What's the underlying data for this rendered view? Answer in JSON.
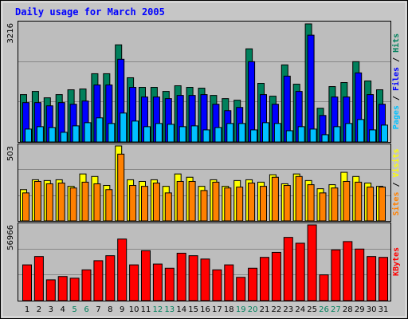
{
  "chart_data": [
    {
      "type": "bar",
      "title": "Daily usage for March 2005",
      "separator": "/",
      "ylim": [
        0,
        3216
      ],
      "yticks": [
        3216
      ],
      "series": [
        {
          "name": "Hits",
          "color": "#00805c",
          "values": [
            1282,
            1369,
            1195,
            1282,
            1412,
            1434,
            1847,
            1847,
            2629,
            1738,
            1478,
            1478,
            1369,
            1521,
            1478,
            1456,
            1260,
            1173,
            1130,
            2521,
            1586,
            1239,
            2086,
            1564,
            3195,
            913,
            1499,
            1608,
            2173,
            1651,
            1412
          ]
        },
        {
          "name": "Files",
          "color": "#0000ff",
          "values": [
            1065,
            1065,
            978,
            1065,
            1021,
            1108,
            1543,
            1543,
            2238,
            1478,
            1217,
            1217,
            1173,
            1260,
            1260,
            1282,
            1021,
            847,
            934,
            2173,
            1282,
            1021,
            1782,
            1369,
            2890,
            717,
            1217,
            1217,
            1869,
            1282,
            1021
          ]
        },
        {
          "name": "Pages",
          "color": "#00c0ff",
          "values": [
            348,
            413,
            391,
            261,
            435,
            521,
            652,
            500,
            782,
            565,
            413,
            500,
            478,
            413,
            435,
            326,
            391,
            500,
            500,
            326,
            521,
            500,
            304,
            413,
            348,
            196,
            413,
            500,
            608,
            326,
            456
          ]
        }
      ]
    },
    {
      "type": "bar",
      "separator": "/",
      "ylim": [
        0,
        503
      ],
      "yticks": [
        503
      ],
      "series": [
        {
          "name": "Visits",
          "color": "#ffff00",
          "values": [
            210,
            276,
            271,
            276,
            232,
            315,
            298,
            238,
            503,
            276,
            265,
            276,
            232,
            315,
            293,
            232,
            276,
            232,
            271,
            276,
            260,
            310,
            249,
            315,
            271,
            216,
            243,
            326,
            298,
            254,
            232
          ]
        },
        {
          "name": "Sites",
          "color": "#ff8000",
          "values": [
            188,
            265,
            249,
            254,
            221,
            260,
            249,
            210,
            448,
            238,
            232,
            254,
            188,
            265,
            265,
            204,
            260,
            221,
            227,
            254,
            232,
            293,
            238,
            298,
            243,
            188,
            221,
            265,
            260,
            227,
            227
          ]
        }
      ]
    },
    {
      "type": "bar",
      "ylim": [
        0,
        56966
      ],
      "yticks": [
        56966
      ],
      "series": [
        {
          "name": "KBytes",
          "color": "#ff0000",
          "values": [
            26918,
            33178,
            15650,
            18154,
            16902,
            23162,
            30048,
            33804,
            46324,
            26918,
            37560,
            27544,
            24414,
            35682,
            33804,
            31300,
            23162,
            26918,
            17528,
            24414,
            32552,
            36308,
            47576,
            43194,
            56966,
            19406,
            38186,
            44446,
            38812,
            33178,
            32552
          ]
        }
      ],
      "categories": [
        "1",
        "2",
        "3",
        "4",
        "5",
        "6",
        "7",
        "8",
        "9",
        "10",
        "11",
        "12",
        "13",
        "14",
        "15",
        "16",
        "17",
        "18",
        "19",
        "20",
        "21",
        "22",
        "23",
        "24",
        "25",
        "26",
        "27",
        "28",
        "29",
        "30",
        "31"
      ],
      "category_colors": [
        "#000000",
        "#000000",
        "#000000",
        "#000000",
        "#00805c",
        "#00805c",
        "#000000",
        "#000000",
        "#000000",
        "#000000",
        "#000000",
        "#00805c",
        "#00805c",
        "#000000",
        "#000000",
        "#000000",
        "#000000",
        "#000000",
        "#00805c",
        "#00805c",
        "#000000",
        "#000000",
        "#000000",
        "#000000",
        "#000000",
        "#00805c",
        "#00805c",
        "#000000",
        "#000000",
        "#000000",
        "#000000"
      ]
    }
  ]
}
